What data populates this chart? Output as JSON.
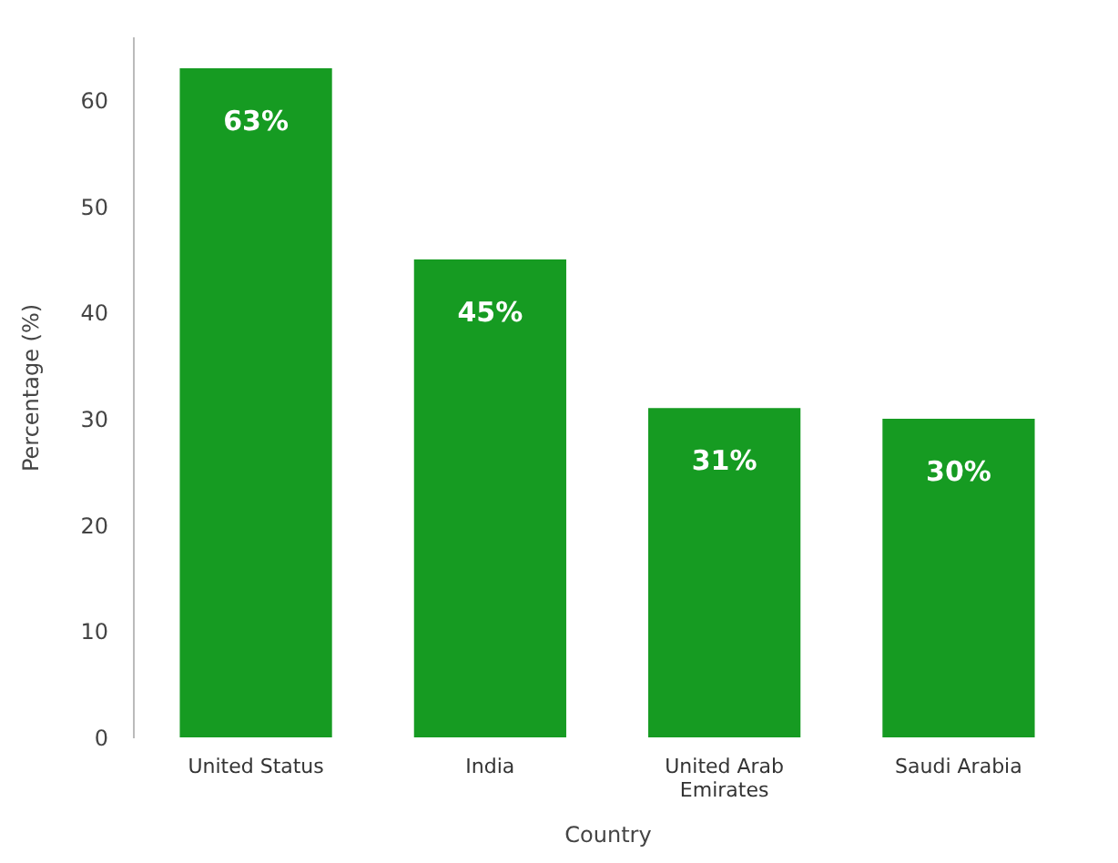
{
  "chart_data": {
    "type": "bar",
    "xlabel": "Country",
    "ylabel": "Percentage (%)",
    "categories": [
      "United Status",
      "India",
      "United Arab Emirates",
      "Saudi Arabia"
    ],
    "values": [
      63,
      45,
      31,
      30
    ],
    "value_labels": [
      "63%",
      "45%",
      "31%",
      "30%"
    ],
    "color": "#169b22",
    "ylim": [
      0,
      66
    ],
    "yticks": [
      0,
      10,
      20,
      30,
      40,
      50,
      60
    ],
    "grid": false
  }
}
